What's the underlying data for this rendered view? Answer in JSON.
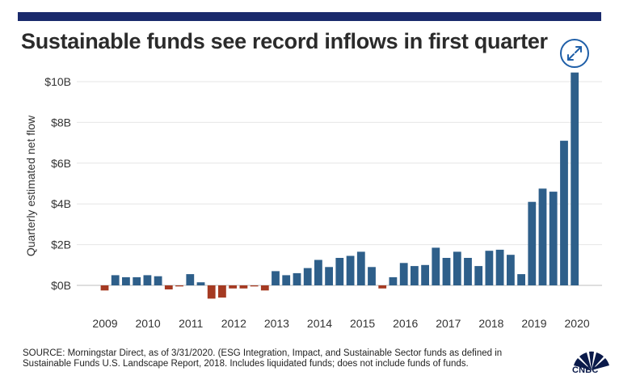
{
  "title": "Sustainable funds see record inflows in first quarter",
  "source_line1": "SOURCE: Morningstar Direct, as of 3/31/2020. (ESG Integration, Impact, and Sustainable Sector funds as defined in",
  "source_line2": "Sustainable Funds U.S. Landscape Report, 2018. Includes liquidated funds; does not include funds of funds.",
  "logo_text": "CNBC",
  "icons": {
    "expand": "expand-arrows-icon",
    "logo": "cnbc-peacock-icon"
  },
  "colors": {
    "positive": "#2e5f8a",
    "negative": "#a53a22",
    "top_bar": "#1a2a6c",
    "grid": "#e6e6e6"
  },
  "chart_data": {
    "type": "bar",
    "ylabel": "Quarterly estimated net flow",
    "ylim": [
      -0.8,
      10.5
    ],
    "yticks": [
      0,
      2,
      4,
      6,
      8,
      10
    ],
    "ytick_labels": [
      "$0B",
      "$2B",
      "$4B",
      "$6B",
      "$8B",
      "$10B"
    ],
    "grid": true,
    "year_labels": [
      "2009",
      "2010",
      "2011",
      "2012",
      "2013",
      "2014",
      "2015",
      "2016",
      "2017",
      "2018",
      "2019",
      "2020"
    ],
    "values": [
      -0.25,
      0.5,
      0.4,
      0.4,
      0.5,
      0.45,
      -0.2,
      -0.05,
      0.55,
      0.15,
      -0.65,
      -0.6,
      -0.15,
      -0.15,
      -0.05,
      -0.25,
      0.7,
      0.5,
      0.6,
      0.85,
      1.25,
      0.9,
      1.35,
      1.45,
      1.65,
      0.9,
      -0.15,
      0.4,
      1.1,
      0.95,
      1.0,
      1.85,
      1.35,
      1.65,
      1.35,
      0.95,
      1.7,
      1.75,
      1.5,
      0.55,
      4.1,
      4.75,
      4.6,
      7.1,
      10.45
    ]
  }
}
